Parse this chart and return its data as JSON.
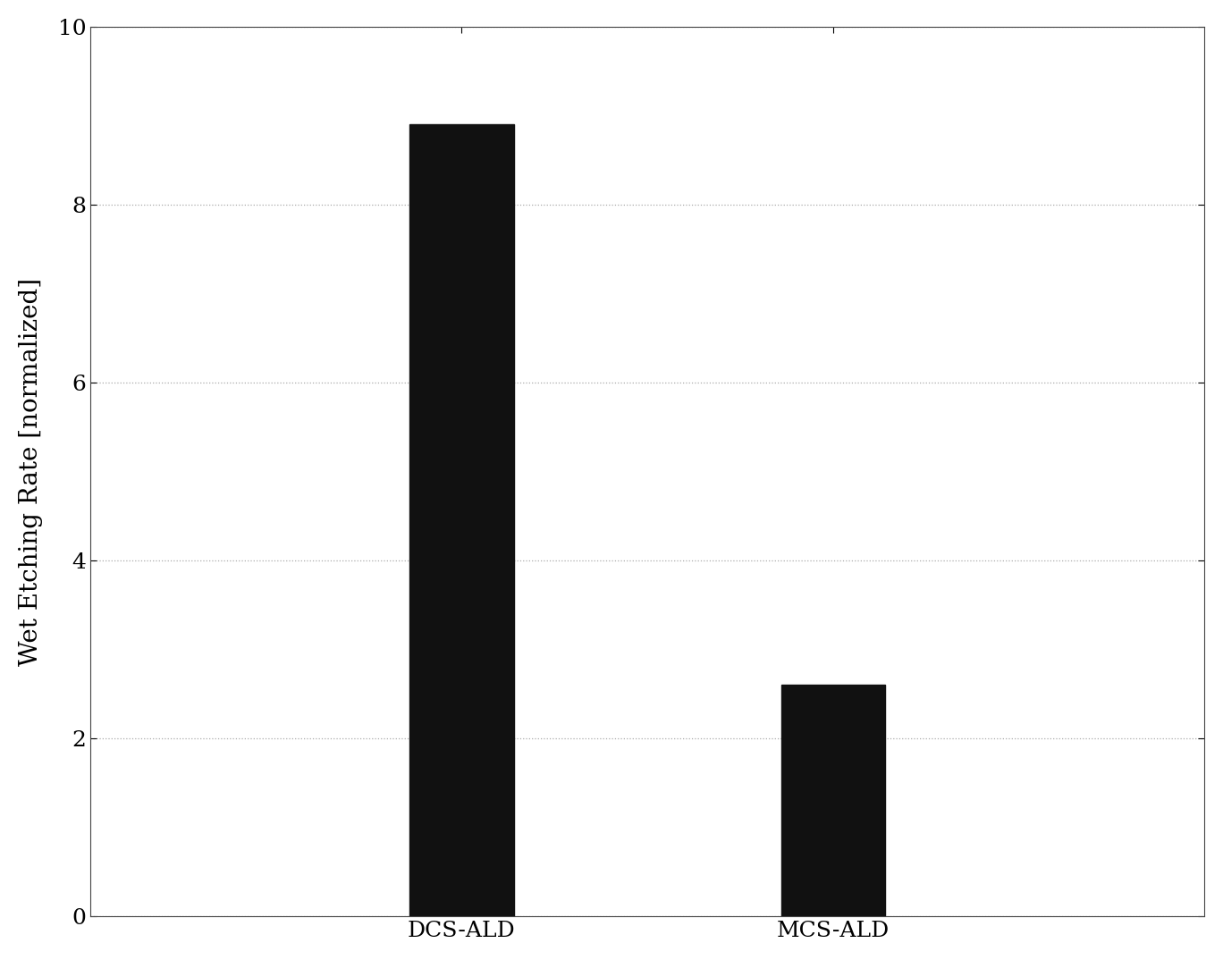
{
  "categories": [
    "DCS-ALD",
    "MCS-ALD"
  ],
  "values": [
    8.9,
    2.6
  ],
  "bar_color": "#111111",
  "bar_width": 0.28,
  "ylabel": "Wet Etching Rate [normalized]",
  "ylim": [
    0,
    10
  ],
  "yticks": [
    0,
    2,
    4,
    6,
    8,
    10
  ],
  "background_color": "#ffffff",
  "grid_color": "#aaaaaa",
  "ylabel_fontsize": 20,
  "tick_fontsize": 18,
  "xlabel_fontsize": 18,
  "figsize": [
    13.68,
    10.74
  ],
  "dpi": 100,
  "xlim": [
    0,
    3
  ],
  "x_positions": [
    1,
    2
  ]
}
